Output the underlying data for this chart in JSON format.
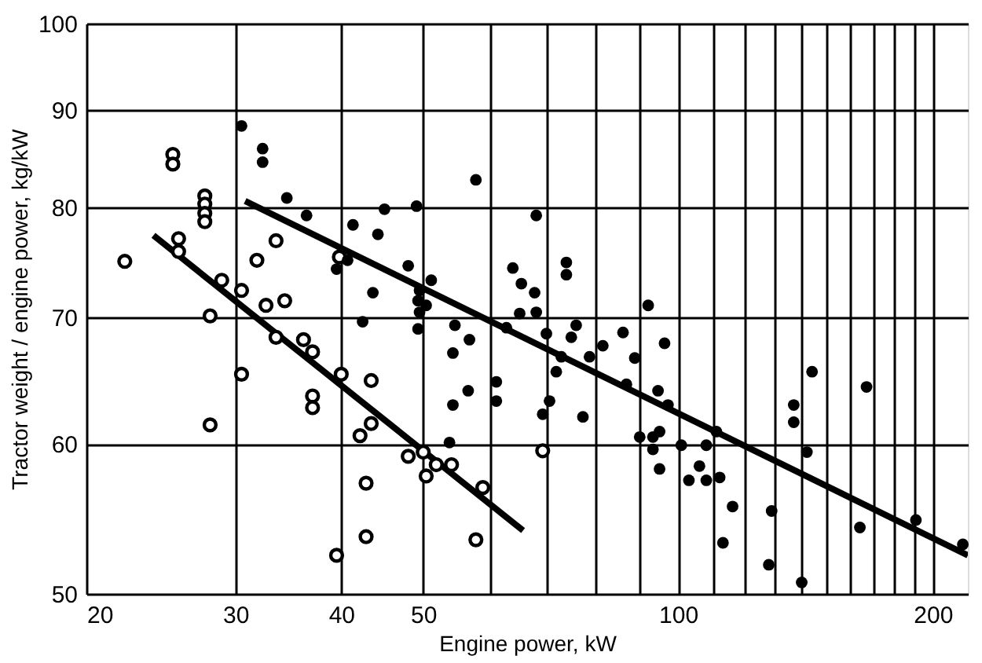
{
  "chart_data": {
    "type": "scatter",
    "xlabel": "Engine power, kW",
    "ylabel": "Tractor weight / engine power, kg/kW",
    "log": "xy",
    "grid": true,
    "xlim": [
      20,
      220
    ],
    "ylim": [
      50,
      100
    ],
    "xticks": [
      20,
      30,
      40,
      50,
      {
        "value": 60,
        "label": null
      },
      {
        "value": 70,
        "label": null
      },
      {
        "value": 80,
        "label": null
      },
      {
        "value": 90,
        "label": null
      },
      100,
      {
        "value": 110,
        "label": null
      },
      {
        "value": 120,
        "label": null
      },
      {
        "value": 130,
        "label": null
      },
      {
        "value": 140,
        "label": null
      },
      {
        "value": 150,
        "label": null
      },
      {
        "value": 160,
        "label": null
      },
      {
        "value": 170,
        "label": null
      },
      {
        "value": 180,
        "label": null
      },
      {
        "value": 190,
        "label": null
      },
      200
    ],
    "yticks": [
      50,
      60,
      70,
      80,
      90,
      100
    ],
    "series": [
      {
        "marker": "circle",
        "color": "#000000",
        "x": [
          22.2,
          25.3,
          25.3,
          27.6,
          27.6,
          27.6,
          27.6,
          25.7,
          25.7,
          28.0,
          28.0,
          28.9,
          30.5,
          30.5,
          31.8,
          33.5,
          32.6,
          34.3,
          33.5,
          36.1,
          37.0,
          37.0,
          37.0,
          40.0,
          43.4,
          43.4,
          42.1,
          39.8,
          42.8,
          42.8,
          39.5,
          48.0,
          50.0,
          50.4,
          51.8,
          54.0,
          58.8,
          57.7,
          69.2
        ],
        "values": [
          74.9,
          85.3,
          84.3,
          81.1,
          80.3,
          79.4,
          78.6,
          77.0,
          75.8,
          70.1,
          61.4,
          73.2,
          72.3,
          65.3,
          75.0,
          76.8,
          71.0,
          71.4,
          68.3,
          68.1,
          67.1,
          63.6,
          62.7,
          65.3,
          64.8,
          61.5,
          60.6,
          75.3,
          57.2,
          53.6,
          52.4,
          59.1,
          59.4,
          57.7,
          58.5,
          58.5,
          56.9,
          53.4,
          59.5
        ]
      },
      {
        "marker": "circle",
        "color": "#000000",
        "x": [
          30.5,
          32.3,
          32.3,
          34.5,
          36.4,
          41.3,
          44.2,
          45.0,
          40.7,
          39.5,
          43.6,
          42.4,
          49.1,
          57.7,
          68.0,
          48.0,
          51.1,
          49.5,
          49.3,
          50.4,
          49.5,
          49.3,
          54.5,
          56.7,
          54.2,
          54.2,
          56.5,
          61.0,
          61.0,
          53.7,
          63.8,
          65.3,
          67.7,
          65.0,
          68.0,
          73.8,
          73.8,
          62.7,
          69.9,
          75.8,
          74.8,
          71.8,
          72.8,
          70.5,
          69.2,
          77.2,
          78.6,
          81.5,
          86.1,
          92.2,
          88.9,
          96.4,
          86.9,
          94.7,
          97.3,
          90.1,
          93.4,
          95.1,
          93.4,
          100.9,
          95.1,
          103,
          108,
          111,
          106,
          108,
          112,
          116,
          113,
          128,
          140,
          129,
          137,
          137,
          144,
          142,
          167,
          164,
          191,
          217
        ],
        "values": [
          88.3,
          85.9,
          84.5,
          80.9,
          79.2,
          78.3,
          77.4,
          79.8,
          75.0,
          74.2,
          72.1,
          69.6,
          80.1,
          82.7,
          79.2,
          74.5,
          73.2,
          72.3,
          71.4,
          71.0,
          70.4,
          69.0,
          69.3,
          68.1,
          67.0,
          62.9,
          64.0,
          64.7,
          63.2,
          60.1,
          74.3,
          72.9,
          72.1,
          70.3,
          70.4,
          74.8,
          73.7,
          69.1,
          68.6,
          69.3,
          68.3,
          65.5,
          66.7,
          63.2,
          62.2,
          62.0,
          66.7,
          67.6,
          68.7,
          71.0,
          66.6,
          67.8,
          64.5,
          64.0,
          62.9,
          60.5,
          60.5,
          60.9,
          59.6,
          59.9,
          58.2,
          57.4,
          59.9,
          60.9,
          58.4,
          57.4,
          57.6,
          55.6,
          53.2,
          51.8,
          50.7,
          55.3,
          62.9,
          61.6,
          65.5,
          59.4,
          64.3,
          54.2,
          54.7,
          53.1
        ]
      },
      {
        "type": "line",
        "marker": "none",
        "line_style": "solid",
        "color": "#000000",
        "x": [
          24.0,
          65.6
        ],
        "values": [
          77.3,
          54.0
        ]
      },
      {
        "type": "line",
        "marker": "none",
        "line_style": "solid",
        "color": "#000000",
        "x": [
          30.8,
          220
        ],
        "values": [
          80.6,
          52.4
        ]
      }
    ]
  }
}
